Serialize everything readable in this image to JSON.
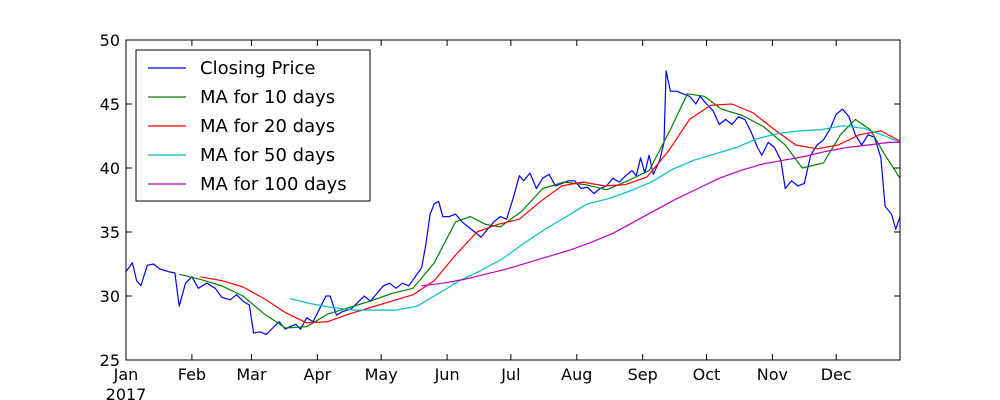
{
  "chart_data": {
    "type": "line",
    "title": "",
    "xlabel": "",
    "ylabel": "",
    "ylim": [
      25,
      50
    ],
    "yticks": [
      25,
      30,
      35,
      40,
      45,
      50
    ],
    "xlim": [
      "2017-01-01",
      "2017-12-31"
    ],
    "year_label": "2017",
    "x_tick_labels": [
      {
        "label": "Jan",
        "date": "2017-01-01"
      },
      {
        "label": "Feb",
        "date": "2017-02-01"
      },
      {
        "label": "Mar",
        "date": "2017-03-01"
      },
      {
        "label": "Apr",
        "date": "2017-04-01"
      },
      {
        "label": "May",
        "date": "2017-05-01"
      },
      {
        "label": "Jun",
        "date": "2017-06-01"
      },
      {
        "label": "Jul",
        "date": "2017-07-01"
      },
      {
        "label": "Aug",
        "date": "2017-08-01"
      },
      {
        "label": "Sep",
        "date": "2017-09-01"
      },
      {
        "label": "Oct",
        "date": "2017-10-01"
      },
      {
        "label": "Nov",
        "date": "2017-11-01"
      },
      {
        "label": "Dec",
        "date": "2017-12-01"
      }
    ],
    "grid": false,
    "legend_position": "top-left",
    "series": [
      {
        "name": "Closing Price",
        "color": "#0000ff",
        "points": [
          [
            "2017-01-01",
            31.9
          ],
          [
            "2017-01-04",
            32.6
          ],
          [
            "2017-01-06",
            31.2
          ],
          [
            "2017-01-08",
            30.8
          ],
          [
            "2017-01-11",
            32.4
          ],
          [
            "2017-01-14",
            32.5
          ],
          [
            "2017-01-17",
            32.1
          ],
          [
            "2017-01-21",
            31.9
          ],
          [
            "2017-01-24",
            31.8
          ],
          [
            "2017-01-26",
            29.2
          ],
          [
            "2017-01-29",
            31.0
          ],
          [
            "2017-02-01",
            31.5
          ],
          [
            "2017-02-04",
            30.6
          ],
          [
            "2017-02-08",
            31.0
          ],
          [
            "2017-02-12",
            30.6
          ],
          [
            "2017-02-15",
            29.9
          ],
          [
            "2017-02-19",
            29.7
          ],
          [
            "2017-02-22",
            30.1
          ],
          [
            "2017-02-25",
            29.6
          ],
          [
            "2017-02-28",
            29.3
          ],
          [
            "2017-03-02",
            27.1
          ],
          [
            "2017-03-05",
            27.2
          ],
          [
            "2017-03-08",
            27.0
          ],
          [
            "2017-03-11",
            27.5
          ],
          [
            "2017-03-14",
            28.0
          ],
          [
            "2017-03-17",
            27.4
          ],
          [
            "2017-03-19",
            27.6
          ],
          [
            "2017-03-22",
            27.8
          ],
          [
            "2017-03-24",
            27.4
          ],
          [
            "2017-03-27",
            28.3
          ],
          [
            "2017-03-30",
            28.0
          ],
          [
            "2017-04-02",
            29.0
          ],
          [
            "2017-04-05",
            30.0
          ],
          [
            "2017-04-07",
            30.0
          ],
          [
            "2017-04-10",
            28.5
          ],
          [
            "2017-04-13",
            28.8
          ],
          [
            "2017-04-17",
            29.0
          ],
          [
            "2017-04-20",
            29.5
          ],
          [
            "2017-04-23",
            30.0
          ],
          [
            "2017-04-26",
            29.6
          ],
          [
            "2017-04-29",
            30.2
          ],
          [
            "2017-05-02",
            30.8
          ],
          [
            "2017-05-05",
            31.0
          ],
          [
            "2017-05-08",
            30.6
          ],
          [
            "2017-05-11",
            31.0
          ],
          [
            "2017-05-14",
            30.8
          ],
          [
            "2017-05-17",
            31.5
          ],
          [
            "2017-05-20",
            32.2
          ],
          [
            "2017-05-22",
            34.0
          ],
          [
            "2017-05-24",
            36.4
          ],
          [
            "2017-05-26",
            37.2
          ],
          [
            "2017-05-28",
            37.4
          ],
          [
            "2017-05-30",
            36.2
          ],
          [
            "2017-06-02",
            36.2
          ],
          [
            "2017-06-05",
            36.4
          ],
          [
            "2017-06-08",
            35.8
          ],
          [
            "2017-06-11",
            35.4
          ],
          [
            "2017-06-14",
            35.0
          ],
          [
            "2017-06-17",
            34.6
          ],
          [
            "2017-06-20",
            35.2
          ],
          [
            "2017-06-23",
            35.8
          ],
          [
            "2017-06-26",
            36.2
          ],
          [
            "2017-06-29",
            36.0
          ],
          [
            "2017-07-02",
            37.6
          ],
          [
            "2017-07-05",
            39.4
          ],
          [
            "2017-07-07",
            39.0
          ],
          [
            "2017-07-10",
            39.6
          ],
          [
            "2017-07-13",
            38.4
          ],
          [
            "2017-07-16",
            39.2
          ],
          [
            "2017-07-19",
            39.5
          ],
          [
            "2017-07-22",
            38.6
          ],
          [
            "2017-07-25",
            38.8
          ],
          [
            "2017-07-28",
            39.0
          ],
          [
            "2017-07-31",
            39.0
          ],
          [
            "2017-08-03",
            38.4
          ],
          [
            "2017-08-06",
            38.5
          ],
          [
            "2017-08-09",
            38.0
          ],
          [
            "2017-08-12",
            38.4
          ],
          [
            "2017-08-15",
            38.6
          ],
          [
            "2017-08-18",
            39.2
          ],
          [
            "2017-08-21",
            38.9
          ],
          [
            "2017-08-24",
            39.4
          ],
          [
            "2017-08-27",
            39.8
          ],
          [
            "2017-08-29",
            39.4
          ],
          [
            "2017-08-31",
            40.8
          ],
          [
            "2017-09-02",
            39.6
          ],
          [
            "2017-09-04",
            41.0
          ],
          [
            "2017-09-06",
            39.5
          ],
          [
            "2017-09-09",
            40.6
          ],
          [
            "2017-09-11",
            42.0
          ],
          [
            "2017-09-12",
            47.6
          ],
          [
            "2017-09-14",
            46.0
          ],
          [
            "2017-09-17",
            46.0
          ],
          [
            "2017-09-20",
            45.8
          ],
          [
            "2017-09-23",
            45.6
          ],
          [
            "2017-09-26",
            45.0
          ],
          [
            "2017-09-28",
            45.6
          ],
          [
            "2017-10-01",
            45.0
          ],
          [
            "2017-10-04",
            44.5
          ],
          [
            "2017-10-07",
            43.4
          ],
          [
            "2017-10-10",
            43.8
          ],
          [
            "2017-10-13",
            43.4
          ],
          [
            "2017-10-16",
            44.0
          ],
          [
            "2017-10-19",
            43.8
          ],
          [
            "2017-10-22",
            42.8
          ],
          [
            "2017-10-25",
            41.6
          ],
          [
            "2017-10-27",
            41.0
          ],
          [
            "2017-10-30",
            42.0
          ],
          [
            "2017-11-02",
            41.6
          ],
          [
            "2017-11-05",
            40.6
          ],
          [
            "2017-11-07",
            38.4
          ],
          [
            "2017-11-10",
            39.0
          ],
          [
            "2017-11-13",
            38.6
          ],
          [
            "2017-11-16",
            38.8
          ],
          [
            "2017-11-19",
            41.0
          ],
          [
            "2017-11-22",
            41.8
          ],
          [
            "2017-11-25",
            42.2
          ],
          [
            "2017-11-28",
            43.0
          ],
          [
            "2017-12-01",
            44.2
          ],
          [
            "2017-12-04",
            44.6
          ],
          [
            "2017-12-07",
            44.0
          ],
          [
            "2017-12-10",
            42.6
          ],
          [
            "2017-12-13",
            41.8
          ],
          [
            "2017-12-16",
            42.6
          ],
          [
            "2017-12-19",
            42.4
          ],
          [
            "2017-12-22",
            40.8
          ],
          [
            "2017-12-24",
            37.0
          ],
          [
            "2017-12-27",
            36.4
          ],
          [
            "2017-12-29",
            35.2
          ],
          [
            "2017-12-31",
            36.2
          ]
        ]
      },
      {
        "name": "MA for 10 days",
        "color": "#008000",
        "points": [
          [
            "2017-01-26",
            31.7
          ],
          [
            "2017-02-05",
            31.3
          ],
          [
            "2017-02-15",
            30.8
          ],
          [
            "2017-02-25",
            30.0
          ],
          [
            "2017-03-07",
            28.6
          ],
          [
            "2017-03-17",
            27.5
          ],
          [
            "2017-03-27",
            27.6
          ],
          [
            "2017-04-06",
            28.6
          ],
          [
            "2017-04-16",
            29.1
          ],
          [
            "2017-04-26",
            29.6
          ],
          [
            "2017-05-06",
            30.2
          ],
          [
            "2017-05-16",
            30.6
          ],
          [
            "2017-05-26",
            32.6
          ],
          [
            "2017-06-05",
            35.8
          ],
          [
            "2017-06-12",
            36.2
          ],
          [
            "2017-06-19",
            35.6
          ],
          [
            "2017-06-26",
            35.4
          ],
          [
            "2017-07-06",
            36.6
          ],
          [
            "2017-07-16",
            38.4
          ],
          [
            "2017-07-26",
            38.9
          ],
          [
            "2017-08-05",
            38.7
          ],
          [
            "2017-08-15",
            38.3
          ],
          [
            "2017-08-25",
            39.0
          ],
          [
            "2017-09-04",
            39.8
          ],
          [
            "2017-09-14",
            43.0
          ],
          [
            "2017-09-22",
            45.8
          ],
          [
            "2017-09-30",
            45.6
          ],
          [
            "2017-10-08",
            44.6
          ],
          [
            "2017-10-18",
            44.1
          ],
          [
            "2017-10-28",
            43.2
          ],
          [
            "2017-11-07",
            41.8
          ],
          [
            "2017-11-15",
            40.0
          ],
          [
            "2017-11-25",
            40.4
          ],
          [
            "2017-12-03",
            42.6
          ],
          [
            "2017-12-10",
            43.8
          ],
          [
            "2017-12-17",
            43.0
          ],
          [
            "2017-12-24",
            41.0
          ],
          [
            "2017-12-31",
            39.2
          ]
        ]
      },
      {
        "name": "MA for 20 days",
        "color": "#ff0000",
        "points": [
          [
            "2017-02-05",
            31.5
          ],
          [
            "2017-02-15",
            31.2
          ],
          [
            "2017-02-25",
            30.7
          ],
          [
            "2017-03-07",
            29.8
          ],
          [
            "2017-03-17",
            28.7
          ],
          [
            "2017-03-27",
            27.9
          ],
          [
            "2017-04-06",
            28.0
          ],
          [
            "2017-04-16",
            28.6
          ],
          [
            "2017-04-26",
            29.1
          ],
          [
            "2017-05-06",
            29.6
          ],
          [
            "2017-05-16",
            30.1
          ],
          [
            "2017-05-26",
            31.2
          ],
          [
            "2017-06-05",
            33.2
          ],
          [
            "2017-06-15",
            35.0
          ],
          [
            "2017-06-25",
            35.6
          ],
          [
            "2017-07-05",
            36.0
          ],
          [
            "2017-07-15",
            37.4
          ],
          [
            "2017-07-25",
            38.6
          ],
          [
            "2017-08-04",
            38.9
          ],
          [
            "2017-08-14",
            38.6
          ],
          [
            "2017-08-24",
            38.7
          ],
          [
            "2017-09-03",
            39.3
          ],
          [
            "2017-09-13",
            41.3
          ],
          [
            "2017-09-23",
            43.8
          ],
          [
            "2017-10-03",
            44.9
          ],
          [
            "2017-10-13",
            45.0
          ],
          [
            "2017-10-23",
            44.3
          ],
          [
            "2017-11-02",
            43.0
          ],
          [
            "2017-11-12",
            41.8
          ],
          [
            "2017-11-22",
            41.5
          ],
          [
            "2017-12-02",
            41.8
          ],
          [
            "2017-12-12",
            42.6
          ],
          [
            "2017-12-22",
            42.9
          ],
          [
            "2017-12-31",
            42.1
          ]
        ]
      },
      {
        "name": "MA for 50 days",
        "color": "#00bfbf",
        "points": [
          [
            "2017-03-19",
            29.8
          ],
          [
            "2017-03-29",
            29.4
          ],
          [
            "2017-04-08",
            29.1
          ],
          [
            "2017-04-18",
            28.9
          ],
          [
            "2017-04-28",
            28.9
          ],
          [
            "2017-05-08",
            28.9
          ],
          [
            "2017-05-18",
            29.2
          ],
          [
            "2017-05-28",
            30.2
          ],
          [
            "2017-06-07",
            31.2
          ],
          [
            "2017-06-17",
            32.0
          ],
          [
            "2017-06-27",
            32.9
          ],
          [
            "2017-07-07",
            34.1
          ],
          [
            "2017-07-17",
            35.2
          ],
          [
            "2017-07-27",
            36.2
          ],
          [
            "2017-08-06",
            37.2
          ],
          [
            "2017-08-16",
            37.6
          ],
          [
            "2017-08-26",
            38.2
          ],
          [
            "2017-09-05",
            38.9
          ],
          [
            "2017-09-15",
            39.9
          ],
          [
            "2017-09-25",
            40.6
          ],
          [
            "2017-10-05",
            41.1
          ],
          [
            "2017-10-15",
            41.6
          ],
          [
            "2017-10-25",
            42.3
          ],
          [
            "2017-11-04",
            42.7
          ],
          [
            "2017-11-14",
            42.9
          ],
          [
            "2017-11-24",
            43.0
          ],
          [
            "2017-12-04",
            43.3
          ],
          [
            "2017-12-14",
            43.1
          ],
          [
            "2017-12-24",
            42.5
          ],
          [
            "2017-12-31",
            42.0
          ]
        ]
      },
      {
        "name": "MA for 100 days",
        "color": "#bf00bf",
        "points": [
          [
            "2017-05-20",
            30.8
          ],
          [
            "2017-05-30",
            31.0
          ],
          [
            "2017-06-09",
            31.3
          ],
          [
            "2017-06-19",
            31.7
          ],
          [
            "2017-06-29",
            32.1
          ],
          [
            "2017-07-09",
            32.6
          ],
          [
            "2017-07-19",
            33.1
          ],
          [
            "2017-07-29",
            33.6
          ],
          [
            "2017-08-08",
            34.2
          ],
          [
            "2017-08-18",
            34.9
          ],
          [
            "2017-08-28",
            35.8
          ],
          [
            "2017-09-07",
            36.7
          ],
          [
            "2017-09-17",
            37.6
          ],
          [
            "2017-09-27",
            38.4
          ],
          [
            "2017-10-07",
            39.2
          ],
          [
            "2017-10-17",
            39.8
          ],
          [
            "2017-10-27",
            40.3
          ],
          [
            "2017-11-06",
            40.6
          ],
          [
            "2017-11-16",
            40.9
          ],
          [
            "2017-11-26",
            41.3
          ],
          [
            "2017-12-06",
            41.6
          ],
          [
            "2017-12-16",
            41.8
          ],
          [
            "2017-12-26",
            42.0
          ],
          [
            "2017-12-31",
            42.0
          ]
        ]
      }
    ]
  }
}
